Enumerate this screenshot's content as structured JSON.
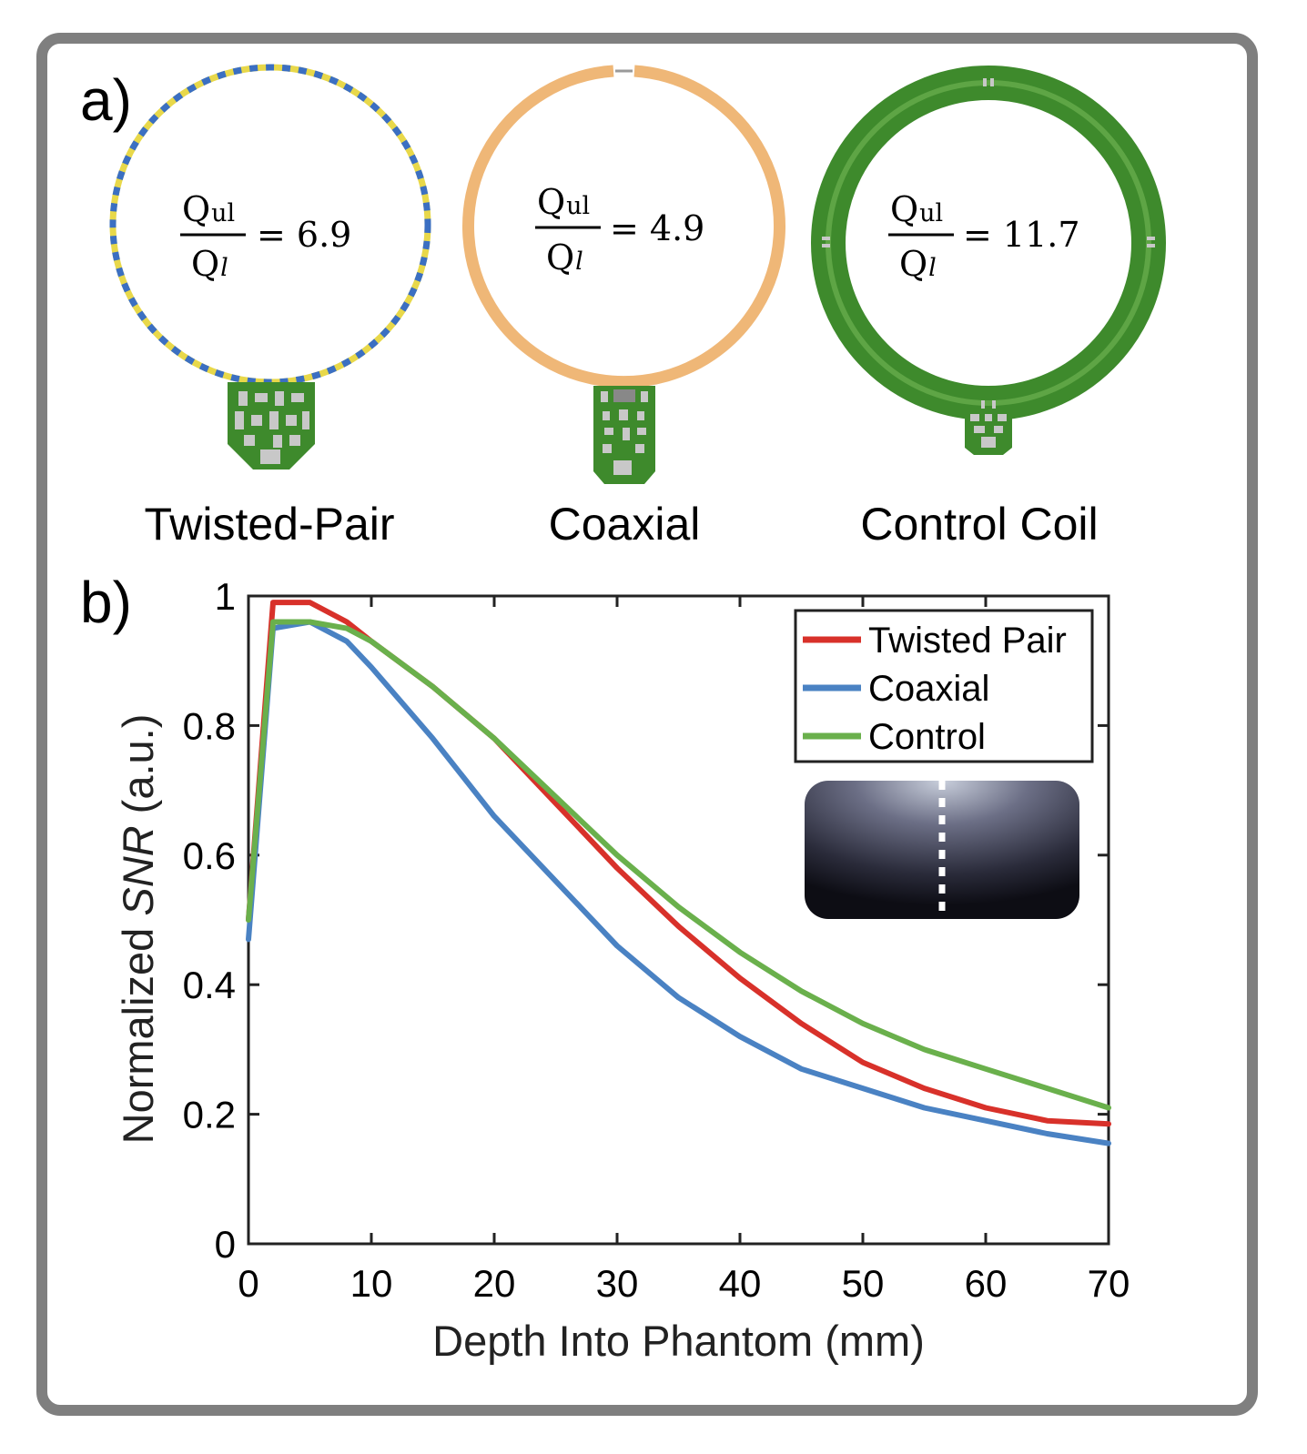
{
  "panel_a": {
    "label": "a)",
    "coils": [
      {
        "name": "Twisted-Pair",
        "ratio_num": "Q",
        "num_sub": "ul",
        "ratio_den": "Q",
        "den_sub": "l",
        "ratio_value": "= 6.9"
      },
      {
        "name": "Coaxial",
        "ratio_num": "Q",
        "num_sub": "ul",
        "ratio_den": "Q",
        "den_sub": "l",
        "ratio_value": "= 4.9"
      },
      {
        "name": "Control Coil",
        "ratio_num": "Q",
        "num_sub": "ul",
        "ratio_den": "Q",
        "den_sub": "l",
        "ratio_value": "= 11.7"
      }
    ]
  },
  "panel_b": {
    "label": "b)"
  },
  "colors": {
    "twisted": "#d8312a",
    "coaxial": "#4a82c3",
    "control": "#6ab04c",
    "pcb": "#3e8a2c",
    "coax_copper": "#efb777"
  },
  "chart_data": {
    "type": "line",
    "title": "",
    "xlabel": "Depth Into Phantom (mm)",
    "ylabel_prefix": "Normalized ",
    "ylabel_italic": "SNR",
    "ylabel_suffix": " (a.u.)",
    "xlim": [
      0,
      70
    ],
    "ylim": [
      0,
      1
    ],
    "xticks": [
      0,
      10,
      20,
      30,
      40,
      50,
      60,
      70
    ],
    "yticks": [
      0,
      0.2,
      0.4,
      0.6,
      0.8,
      1
    ],
    "ytick_labels": [
      "0",
      "0.2",
      "0.4",
      "0.6",
      "0.8",
      "1"
    ],
    "grid": false,
    "legend_position": "top-right",
    "series": [
      {
        "name": "Twisted Pair",
        "color": "#d8312a",
        "x": [
          0,
          2,
          5,
          8,
          10,
          15,
          20,
          25,
          30,
          35,
          40,
          45,
          50,
          55,
          60,
          65,
          70
        ],
        "y": [
          0.5,
          0.99,
          0.99,
          0.96,
          0.93,
          0.86,
          0.78,
          0.68,
          0.58,
          0.49,
          0.41,
          0.34,
          0.28,
          0.24,
          0.21,
          0.19,
          0.185
        ]
      },
      {
        "name": "Coaxial",
        "color": "#4a82c3",
        "x": [
          0,
          2,
          5,
          8,
          10,
          15,
          20,
          25,
          30,
          35,
          40,
          45,
          50,
          55,
          60,
          65,
          70
        ],
        "y": [
          0.47,
          0.95,
          0.96,
          0.93,
          0.89,
          0.78,
          0.66,
          0.56,
          0.46,
          0.38,
          0.32,
          0.27,
          0.24,
          0.21,
          0.19,
          0.17,
          0.155
        ]
      },
      {
        "name": "Control",
        "color": "#6ab04c",
        "x": [
          0,
          2,
          5,
          8,
          10,
          15,
          20,
          25,
          30,
          35,
          40,
          45,
          50,
          55,
          60,
          65,
          70
        ],
        "y": [
          0.5,
          0.96,
          0.96,
          0.95,
          0.93,
          0.86,
          0.78,
          0.69,
          0.6,
          0.52,
          0.45,
          0.39,
          0.34,
          0.3,
          0.27,
          0.24,
          0.21
        ]
      }
    ]
  }
}
